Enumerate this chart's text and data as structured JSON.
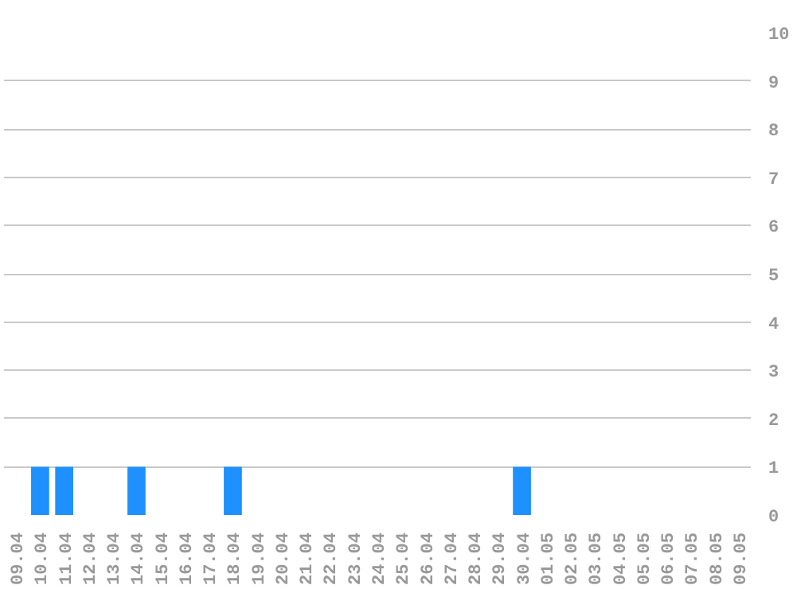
{
  "chart_data": {
    "type": "bar",
    "categories": [
      "09.04",
      "10.04",
      "11.04",
      "12.04",
      "13.04",
      "14.04",
      "15.04",
      "16.04",
      "17.04",
      "18.04",
      "19.04",
      "20.04",
      "21.04",
      "22.04",
      "23.04",
      "24.04",
      "25.04",
      "26.04",
      "27.04",
      "28.04",
      "29.04",
      "30.04",
      "01.05",
      "02.05",
      "03.05",
      "04.05",
      "05.05",
      "06.05",
      "07.05",
      "08.05",
      "09.05"
    ],
    "values": [
      0,
      1,
      1,
      0,
      0,
      1,
      0,
      0,
      0,
      1,
      0,
      0,
      0,
      0,
      0,
      0,
      0,
      0,
      0,
      0,
      0,
      1,
      0,
      0,
      0,
      0,
      0,
      0,
      0,
      0,
      0
    ],
    "color": "#1e90ff",
    "ylim": [
      0,
      10
    ],
    "yticks": [
      0,
      1,
      2,
      3,
      4,
      5,
      6,
      7,
      8,
      9,
      10
    ],
    "grid": "y"
  }
}
